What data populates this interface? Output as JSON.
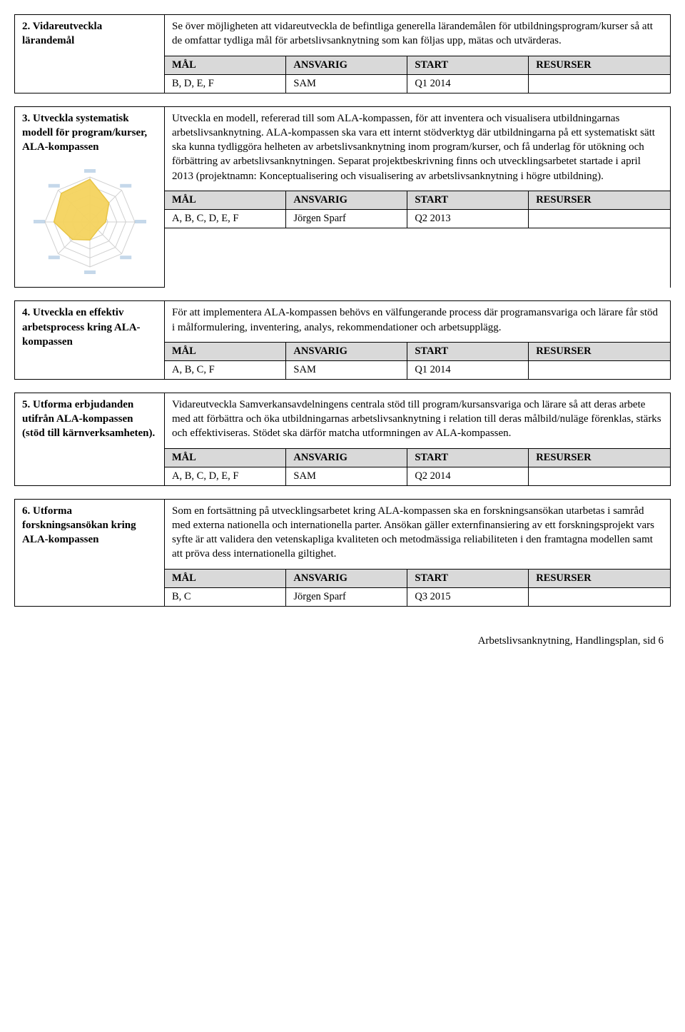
{
  "table_headers": {
    "mal": "MÅL",
    "ansvarig": "ANSVARIG",
    "start": "START",
    "resurser": "RESURSER"
  },
  "colors": {
    "header_bg": "#d9d9d9",
    "border": "#000000",
    "text": "#000000",
    "radar_fill": "#f4d35e",
    "radar_stroke": "#e8c547",
    "radar_grid": "#d0d0d0",
    "radar_label": "#5a8fc4"
  },
  "sections": [
    {
      "title": "2. Vidareutveckla lärandemål",
      "desc": "Se över möjligheten att vidareutveckla de befintliga generella lärandemålen för utbildningsprogram/kurser så att de omfattar tydliga mål för arbetslivsanknytning som kan följas upp, mätas och utvärderas.",
      "row": {
        "mal": "B, D, E, F",
        "ansvarig": "SAM",
        "start": "Q1 2014",
        "resurser": ""
      },
      "radar": false
    },
    {
      "title": "3. Utveckla systematisk modell för program/kurser, ALA-kompassen",
      "desc": "Utveckla en modell, refererad till som ALA-kompassen, för att inventera och visualisera utbildningarnas arbetslivsanknytning. ALA-kompassen ska vara ett internt stödverktyg där utbildningarna på ett systematiskt sätt ska kunna tydliggöra helheten av arbetslivsanknytning inom program/kurser, och få underlag för utökning och förbättring av arbetslivsanknytningen. Separat projektbeskrivning finns och utvecklingsarbetet startade i april 2013 (projektnamn: Konceptualisering och visualisering av arbetslivsanknytning i högre utbildning).",
      "row": {
        "mal": "A, B, C, D, E, F",
        "ansvarig": "Jörgen Sparf",
        "start": "Q2 2013",
        "resurser": ""
      },
      "radar": true
    },
    {
      "title": "4. Utveckla en effektiv arbetsprocess kring ALA-kompassen",
      "desc": "För att implementera ALA-kompassen behövs en välfungerande process där programansvariga och lärare får stöd i målformulering, inventering, analys, rekommendationer och arbetsupplägg.",
      "row": {
        "mal": "A, B, C, F",
        "ansvarig": "SAM",
        "start": "Q1 2014",
        "resurser": ""
      },
      "radar": false
    },
    {
      "title": "5. Utforma erbjudanden utifrån ALA-kompassen (stöd till kärnverksamheten).",
      "desc": "Vidareutveckla Samverkansavdelningens centrala stöd till program/kursansvariga och lärare så att deras arbete med att förbättra och öka utbildningarnas arbetslivsanknytning i relation till deras målbild/nuläge förenklas, stärks och effektiviseras. Stödet ska därför matcha utformningen av ALA-kompassen.",
      "row": {
        "mal": "A, B, C, D, E, F",
        "ansvarig": "SAM",
        "start": "Q2 2014",
        "resurser": ""
      },
      "radar": false
    },
    {
      "title": "6. Utforma forskningsansökan kring ALA-kompassen",
      "desc": "Som en fortsättning på utvecklingsarbetet kring ALA-kompassen ska en forskningsansökan utarbetas i samråd med externa nationella och internationella parter. Ansökan gäller externfinansiering av ett forskningsprojekt vars syfte är att validera den vetenskapliga kvaliteten och metodmässiga reliabiliteten i den framtagna modellen samt att pröva dess internationella giltighet.",
      "row": {
        "mal": "B, C",
        "ansvarig": "Jörgen Sparf",
        "start": "Q3 2015",
        "resurser": ""
      },
      "radar": false
    }
  ],
  "radar_chart": {
    "type": "radar",
    "axes_count": 8,
    "values": [
      0.95,
      0.6,
      0.35,
      0.25,
      0.4,
      0.55,
      0.8,
      0.9
    ],
    "rings": 5,
    "size": 170,
    "fill_color": "#f4d35e",
    "stroke_color": "#e8c547",
    "grid_color": "#d0d0d0",
    "label_color": "#5a8fc4",
    "label_fontsize": 6
  },
  "footer": "Arbetslivsanknytning, Handlingsplan, sid 6"
}
